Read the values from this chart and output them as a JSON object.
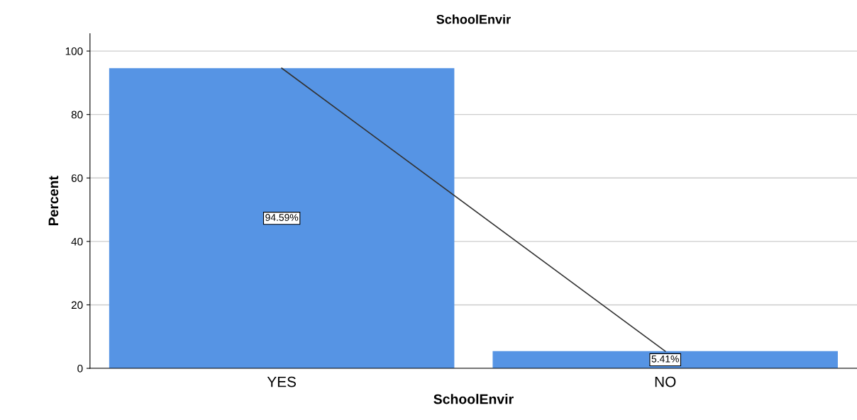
{
  "chart_data": {
    "type": "bar",
    "title": "SchoolEnvir",
    "xlabel": "SchoolEnvir",
    "ylabel": "Percent",
    "categories": [
      "YES",
      "NO"
    ],
    "series": [
      {
        "color": "#5694e4",
        "values": [
          94.59,
          5.41
        ],
        "value_labels": [
          "94.59%",
          "5.41%"
        ]
      },
      {
        "type": "line",
        "color": "#333333",
        "values": [
          94.6,
          5.4
        ]
      }
    ],
    "ylim": [
      0,
      105.5
    ],
    "yticks": [
      0,
      20,
      40,
      60,
      80,
      100
    ],
    "grid": "y",
    "legend": false
  }
}
